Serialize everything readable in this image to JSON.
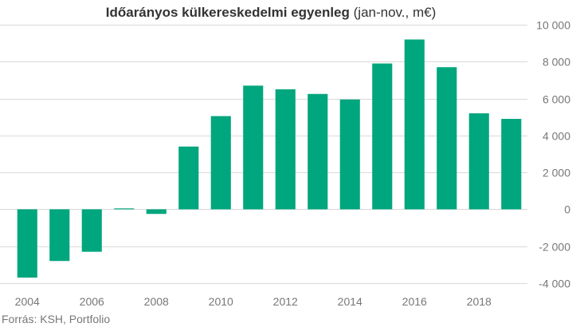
{
  "title": {
    "main": "Időarányos külkereskedelmi egyenleg",
    "sub": " (jan-nov., m€)"
  },
  "source": "Forrás: KSH, Portfolio",
  "colors": {
    "bar": "#00a67d",
    "grid": "#d9d9d9",
    "axis_text": "#777777"
  },
  "chart_data": {
    "type": "bar",
    "x": [
      2004,
      2005,
      2006,
      2007,
      2008,
      2009,
      2010,
      2011,
      2012,
      2013,
      2014,
      2015,
      2016,
      2017,
      2018,
      2019
    ],
    "values": [
      -3700,
      -2800,
      -2300,
      50,
      -250,
      3400,
      5050,
      6700,
      6500,
      6250,
      5950,
      7900,
      9200,
      7700,
      5200,
      4900
    ],
    "x_tick_labels": [
      "2004",
      "2006",
      "2008",
      "2010",
      "2012",
      "2014",
      "2016",
      "2018"
    ],
    "y_ticks": [
      -4000,
      -2000,
      0,
      2000,
      4000,
      6000,
      8000,
      10000
    ],
    "y_tick_labels": [
      "-4 000",
      "-2 000",
      "0",
      "2 000",
      "4 000",
      "6 000",
      "8 000",
      "10 000"
    ],
    "ylim": [
      -4000,
      10000
    ],
    "grid": true,
    "y_axis_side": "right",
    "legend": "none"
  }
}
